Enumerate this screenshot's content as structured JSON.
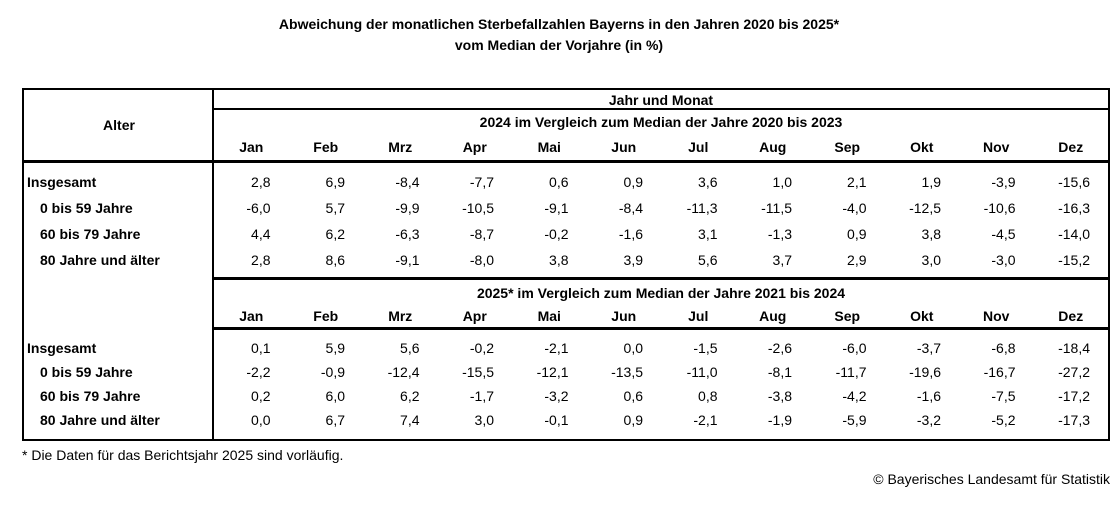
{
  "title": {
    "line1": "Abweichung der monatlichen Sterbefallzahlen Bayerns in den Jahren 2020 bis 2025*",
    "line2": "vom Median der Vorjahre (in %)"
  },
  "chart_data": {
    "type": "table",
    "title": "Abweichung der monatlichen Sterbefallzahlen Bayerns in den Jahren 2020 bis 2025* vom Median der Vorjahre (in %)",
    "row_header_label": "Alter",
    "group_header": "Jahr und Monat",
    "columns": [
      "Jan",
      "Feb",
      "Mrz",
      "Apr",
      "Mai",
      "Jun",
      "Jul",
      "Aug",
      "Sep",
      "Okt",
      "Nov",
      "Dez"
    ],
    "sections": [
      {
        "subtitle": "2024 im Vergleich zum Median der Jahre 2020 bis 2023",
        "rows": [
          {
            "label": "Insgesamt",
            "values": [
              "2,8",
              "6,9",
              "-8,4",
              "-7,7",
              "0,6",
              "0,9",
              "3,6",
              "1,0",
              "2,1",
              "1,9",
              "-3,9",
              "-15,6"
            ]
          },
          {
            "label": "0 bis 59 Jahre",
            "values": [
              "-6,0",
              "5,7",
              "-9,9",
              "-10,5",
              "-9,1",
              "-8,4",
              "-11,3",
              "-11,5",
              "-4,0",
              "-12,5",
              "-10,6",
              "-16,3"
            ]
          },
          {
            "label": "60 bis 79 Jahre",
            "values": [
              "4,4",
              "6,2",
              "-6,3",
              "-8,7",
              "-0,2",
              "-1,6",
              "3,1",
              "-1,3",
              "0,9",
              "3,8",
              "-4,5",
              "-14,0"
            ]
          },
          {
            "label": "80 Jahre und älter",
            "values": [
              "2,8",
              "8,6",
              "-9,1",
              "-8,0",
              "3,8",
              "3,9",
              "5,6",
              "3,7",
              "2,9",
              "3,0",
              "-3,0",
              "-15,2"
            ]
          }
        ]
      },
      {
        "subtitle": "2025* im Vergleich zum Median der Jahre 2021 bis 2024",
        "rows": [
          {
            "label": "Insgesamt",
            "values": [
              "0,1",
              "5,9",
              "5,6",
              "-0,2",
              "-2,1",
              "0,0",
              "-1,5",
              "-2,6",
              "-6,0",
              "-3,7",
              "-6,8",
              "-18,4"
            ]
          },
          {
            "label": "0 bis 59 Jahre",
            "values": [
              "-2,2",
              "-0,9",
              "-12,4",
              "-15,5",
              "-12,1",
              "-13,5",
              "-11,0",
              "-8,1",
              "-11,7",
              "-19,6",
              "-16,7",
              "-27,2"
            ]
          },
          {
            "label": "60 bis 79 Jahre",
            "values": [
              "0,2",
              "6,0",
              "6,2",
              "-1,7",
              "-3,2",
              "0,6",
              "0,8",
              "-3,8",
              "-4,2",
              "-1,6",
              "-7,5",
              "-17,2"
            ]
          },
          {
            "label": "80 Jahre und älter",
            "values": [
              "0,0",
              "6,7",
              "7,4",
              "3,0",
              "-0,1",
              "0,9",
              "-2,1",
              "-1,9",
              "-5,9",
              "-3,2",
              "-5,2",
              "-17,3"
            ]
          }
        ]
      }
    ]
  },
  "footnote": "* Die Daten für das Berichtsjahr 2025 sind vorläufig.",
  "copyright": "© Bayerisches Landesamt für Statistik"
}
